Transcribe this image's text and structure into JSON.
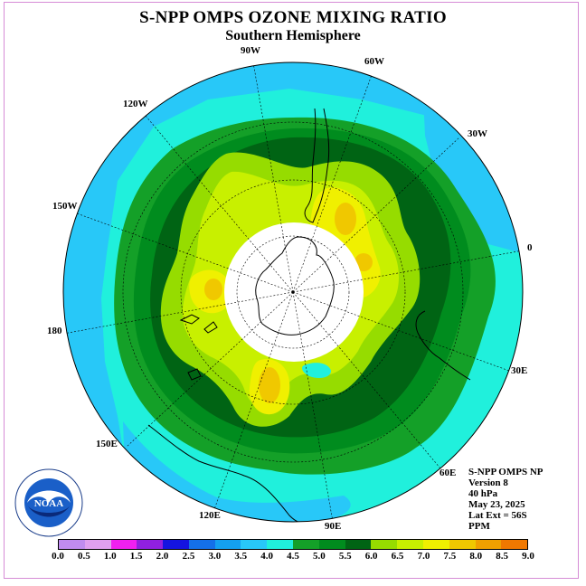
{
  "title": "S-NPP OMPS OZONE MIXING RATIO",
  "subtitle": "Southern Hemisphere",
  "longitude_labels": {
    "l90w": "90W",
    "l60w": "60W",
    "l30w": "30W",
    "l0": "0",
    "l30e": "30E",
    "l60e": "60E",
    "l90e": "90E",
    "l120e": "120E",
    "l150e": "150E",
    "l180": "180",
    "l150w": "150W",
    "l120w": "120W"
  },
  "info": {
    "instrument": "S-NPP OMPS NP",
    "version": "Version 8",
    "level": "40 hPa",
    "date": "May 23, 2025",
    "lat_ext": "Lat Ext = 56S",
    "units": "PPM"
  },
  "logo": {
    "text": "NOAA",
    "ring_text": "NATIONAL OCEANIC AND ATMOSPHERIC ADMINISTRATION · U.S. DEPARTMENT OF COMMERCE"
  },
  "color_scale": {
    "labels": [
      "0.0",
      "0.5",
      "1.0",
      "1.5",
      "2.0",
      "2.5",
      "3.0",
      "3.5",
      "4.0",
      "4.5",
      "5.0",
      "5.5",
      "6.0",
      "6.5",
      "7.0",
      "7.5",
      "8.0",
      "8.5",
      "9.0"
    ],
    "colors": [
      "#c08cf0",
      "#e0a0f0",
      "#f020f0",
      "#9020e0",
      "#1414e0",
      "#1470e8",
      "#14a0f0",
      "#28c8f8",
      "#20f0dc",
      "#14a028",
      "#008c1e",
      "#006414",
      "#96dc00",
      "#c8f000",
      "#f0f000",
      "#f0c800",
      "#f0a000",
      "#f07800",
      "#f01400",
      "#8c5028"
    ]
  },
  "map_data": {
    "projection": "south polar stereographic",
    "center": "South Pole",
    "lat_extent": "56S",
    "field": "ozone mixing ratio (ppm) at 40 hPa",
    "value_ranges": {
      "outer_ring": "3.5-4.0",
      "edge_patches": "3.0-3.5",
      "band_outer": "4.0-4.5",
      "band_mid": "4.5-5.0",
      "band_inner": "5.0-5.5",
      "lobes": "5.5-6.0",
      "lobe_peaks": "6.5-7.0",
      "polar_night": "no data"
    }
  }
}
